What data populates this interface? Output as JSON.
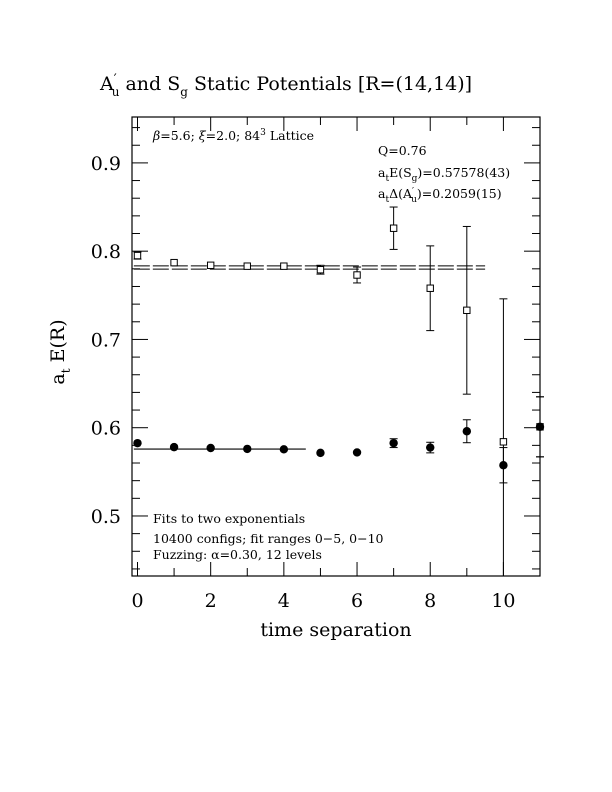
{
  "chart_data": {
    "type": "scatter",
    "title": {
      "prefix": "A",
      "prefix_prime": "′",
      "prefix_sub": "u",
      "mid": " and S",
      "mid_sub": "g",
      "suffix": " Static Potentials [R=(14,14)]"
    },
    "xlabel": "time separation",
    "ylabel": "a",
    "ylabel_sub": "t",
    "ylabel_rest": " E(R)",
    "xlim": [
      -0.15,
      11.0
    ],
    "ylim": [
      0.432,
      0.952
    ],
    "x_ticks": [
      0,
      2,
      4,
      6,
      8,
      10
    ],
    "x_tick_labels": [
      "0",
      "2",
      "4",
      "6",
      "8",
      "10"
    ],
    "y_ticks": [
      0.5,
      0.6,
      0.7,
      0.8,
      0.9
    ],
    "y_tick_labels": [
      "0.5",
      "0.6",
      "0.7",
      "0.8",
      "0.9"
    ],
    "annotations": {
      "lattice": {
        "beta": "β",
        "beta_val": "=5.6; ",
        "xi": "ξ",
        "xi_val": "=2.0; 84",
        "sup": "3",
        "tail": " Lattice"
      },
      "fit_q": "Q=0.76",
      "energy_sg": {
        "a": "a",
        "sub_t": "t",
        "mid": "E(S",
        "sub_g": "g",
        "tail": ")=0.57578(43)"
      },
      "delta_au": {
        "a": "a",
        "sub_t": "t",
        "mid": "Δ(A",
        "prime": "′",
        "sub_u": "u",
        "tail": ")=0.2059(15)"
      },
      "fit_note_1": "Fits to two exponentials",
      "fit_note_2": "10400 configs; fit ranges 0−5, 0−10",
      "fit_note_3": "Fuzzing: α=0.30, 12 levels"
    },
    "series": [
      {
        "marker": "open-square",
        "points": [
          {
            "x": 0,
            "y": 0.795,
            "err": 0.004
          },
          {
            "x": 1,
            "y": 0.787,
            "err": 0.003
          },
          {
            "x": 2,
            "y": 0.784,
            "err": 0.003
          },
          {
            "x": 3,
            "y": 0.783,
            "err": 0.003
          },
          {
            "x": 4,
            "y": 0.783,
            "err": 0.003
          },
          {
            "x": 5,
            "y": 0.779,
            "err": 0.005
          },
          {
            "x": 6,
            "y": 0.773,
            "err": 0.009
          },
          {
            "x": 7,
            "y": 0.826,
            "err": 0.024
          },
          {
            "x": 8,
            "y": 0.758,
            "err": 0.048
          },
          {
            "x": 9,
            "y": 0.733,
            "err": 0.095
          },
          {
            "x": 10,
            "y": 0.584,
            "err": 0.162
          },
          {
            "x": 11,
            "y": 0.601,
            "err": 0.034
          }
        ],
        "fit_line": {
          "x0": -0.1,
          "x1": 9.5,
          "y": 0.7815,
          "style": "dashed-double"
        }
      },
      {
        "marker": "filled-circle",
        "points": [
          {
            "x": 0,
            "y": 0.5825,
            "err": 0.0015
          },
          {
            "x": 1,
            "y": 0.578,
            "err": 0.0015
          },
          {
            "x": 2,
            "y": 0.577,
            "err": 0.0015
          },
          {
            "x": 3,
            "y": 0.576,
            "err": 0.0015
          },
          {
            "x": 4,
            "y": 0.5755,
            "err": 0.0015
          },
          {
            "x": 5,
            "y": 0.5715,
            "err": 0.002
          },
          {
            "x": 6,
            "y": 0.572,
            "err": 0.003
          },
          {
            "x": 7,
            "y": 0.5825,
            "err": 0.005
          },
          {
            "x": 8,
            "y": 0.5775,
            "err": 0.006
          },
          {
            "x": 9,
            "y": 0.596,
            "err": 0.013
          },
          {
            "x": 10,
            "y": 0.5575,
            "err": 0.02
          },
          {
            "x": 11,
            "y": 0.601,
            "err": 0.034
          }
        ],
        "fit_line": {
          "x0": -0.1,
          "x1": 4.6,
          "y": 0.57578,
          "style": "solid"
        }
      }
    ]
  }
}
